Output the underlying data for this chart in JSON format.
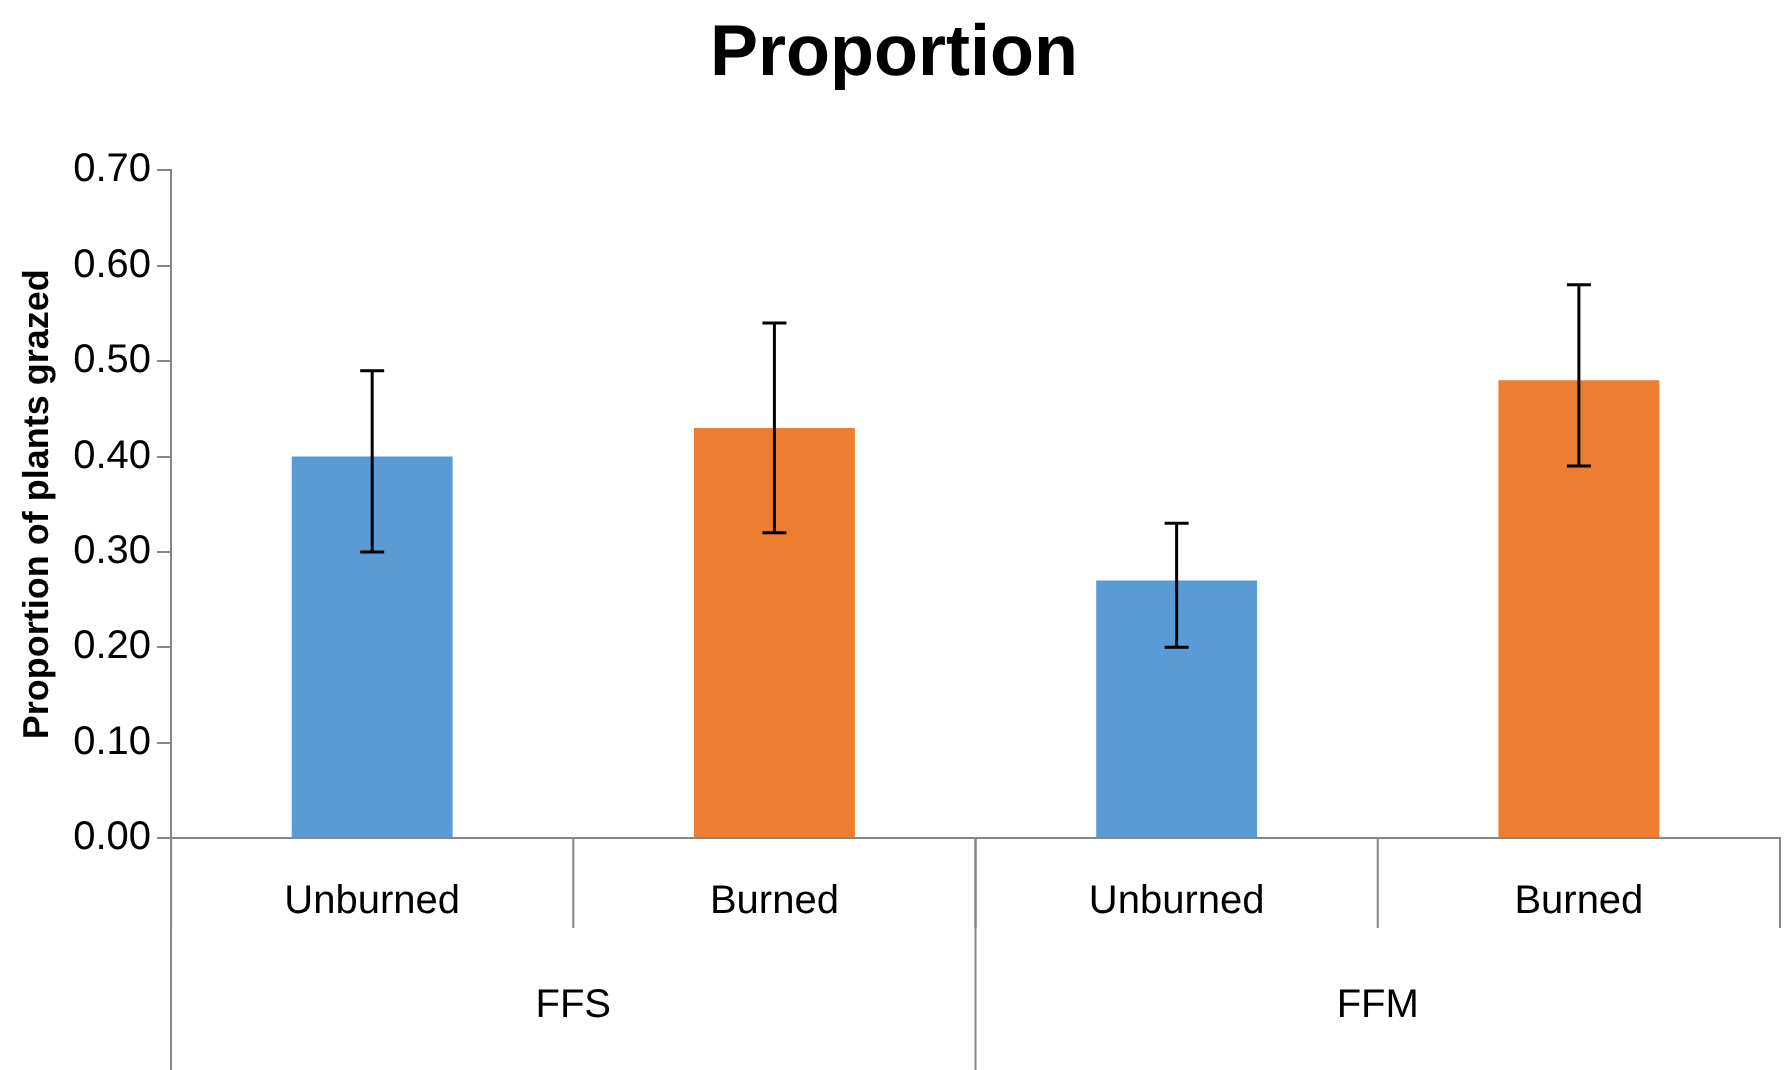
{
  "chart_data": {
    "type": "bar",
    "title": "Proportion",
    "ylabel": "Proportion of plants grazed",
    "categories": [
      "Unburned",
      "Burned",
      "Unburned",
      "Burned"
    ],
    "values": [
      0.4,
      0.43,
      0.27,
      0.48
    ],
    "colors": [
      "#5b9bd5",
      "#ed7d31",
      "#5b9bd5",
      "#ed7d31"
    ],
    "errors": [
      [
        0.3,
        0.49
      ],
      [
        0.32,
        0.54
      ],
      [
        0.2,
        0.33
      ],
      [
        0.39,
        0.58
      ]
    ],
    "annotations": [
      "FFS",
      "FFM"
    ],
    "ylim": [
      0,
      0.7
    ],
    "yticks": [
      {
        "value": 0,
        "label": "0.00"
      },
      {
        "value": 0.1,
        "label": "0.10"
      },
      {
        "value": 0.2,
        "label": "0.20"
      },
      {
        "value": 0.3,
        "label": "0.30"
      },
      {
        "value": 0.4,
        "label": "0.40"
      },
      {
        "value": 0.5,
        "label": "0.50"
      },
      {
        "value": 0.6,
        "label": "0.60"
      },
      {
        "value": 0.7,
        "label": "0.70"
      }
    ],
    "grid": false,
    "legend": false
  }
}
